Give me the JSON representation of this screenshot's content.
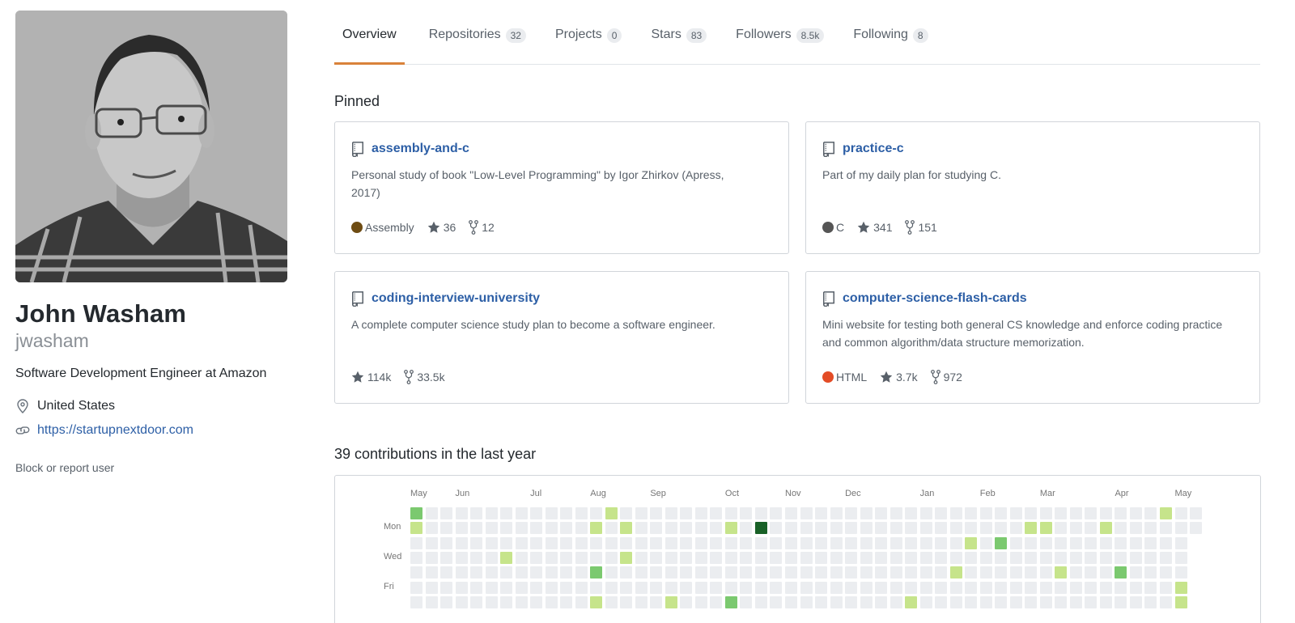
{
  "profile": {
    "fullname": "John Washam",
    "username": "jwasham",
    "bio": "Software Development Engineer at Amazon",
    "location": "United States",
    "website": "https://startupnextdoor.com",
    "block_label": "Block or report user"
  },
  "tabs": [
    {
      "label": "Overview",
      "count": null,
      "selected": true
    },
    {
      "label": "Repositories",
      "count": "32",
      "selected": false
    },
    {
      "label": "Projects",
      "count": "0",
      "selected": false
    },
    {
      "label": "Stars",
      "count": "83",
      "selected": false
    },
    {
      "label": "Followers",
      "count": "8.5k",
      "selected": false
    },
    {
      "label": "Following",
      "count": "8",
      "selected": false
    }
  ],
  "pinned": {
    "title": "Pinned",
    "repos": [
      {
        "name": "assembly-and-c",
        "description": "Personal study of book \"Low-Level Programming\" by Igor Zhirkov (Apress, 2017)",
        "language": "Assembly",
        "language_color": "#6E4C13",
        "stars": "36",
        "forks": "12"
      },
      {
        "name": "practice-c",
        "description": "Part of my daily plan for studying C.",
        "language": "C",
        "language_color": "#555555",
        "stars": "341",
        "forks": "151"
      },
      {
        "name": "coding-interview-university",
        "description": "A complete computer science study plan to become a software engineer.",
        "language": null,
        "language_color": null,
        "stars": "114k",
        "forks": "33.5k"
      },
      {
        "name": "computer-science-flash-cards",
        "description": "Mini website for testing both general CS knowledge and enforce coding practice and common algorithm/data structure memorization.",
        "language": "HTML",
        "language_color": "#E34C26",
        "stars": "3.7k",
        "forks": "972"
      }
    ]
  },
  "contributions": {
    "title": "39 contributions in the last year",
    "months": [
      {
        "label": "May",
        "col": 0
      },
      {
        "label": "Jun",
        "col": 3
      },
      {
        "label": "Jul",
        "col": 8
      },
      {
        "label": "Aug",
        "col": 12
      },
      {
        "label": "Sep",
        "col": 16
      },
      {
        "label": "Oct",
        "col": 21
      },
      {
        "label": "Nov",
        "col": 25
      },
      {
        "label": "Dec",
        "col": 29
      },
      {
        "label": "Jan",
        "col": 34
      },
      {
        "label": "Feb",
        "col": 38
      },
      {
        "label": "Mar",
        "col": 42
      },
      {
        "label": "Apr",
        "col": 47
      },
      {
        "label": "May",
        "col": 51
      }
    ],
    "day_labels": [
      {
        "label": "Mon",
        "row": 1
      },
      {
        "label": "Wed",
        "row": 3
      },
      {
        "label": "Fri",
        "row": 5
      }
    ],
    "total_columns": 53,
    "last_column_rows": 2,
    "colors": {
      "0": "#ebedf0",
      "1": "#c6e48b",
      "2": "#7bc96f",
      "3": "#239a3b",
      "4": "#196127"
    },
    "cells": [
      {
        "col": 0,
        "row": 0,
        "level": 2
      },
      {
        "col": 0,
        "row": 1,
        "level": 1
      },
      {
        "col": 6,
        "row": 3,
        "level": 1
      },
      {
        "col": 12,
        "row": 1,
        "level": 1
      },
      {
        "col": 12,
        "row": 4,
        "level": 2
      },
      {
        "col": 12,
        "row": 6,
        "level": 1
      },
      {
        "col": 13,
        "row": 0,
        "level": 1
      },
      {
        "col": 14,
        "row": 1,
        "level": 1
      },
      {
        "col": 14,
        "row": 3,
        "level": 1
      },
      {
        "col": 17,
        "row": 6,
        "level": 1
      },
      {
        "col": 21,
        "row": 1,
        "level": 1
      },
      {
        "col": 21,
        "row": 6,
        "level": 2
      },
      {
        "col": 23,
        "row": 1,
        "level": 4
      },
      {
        "col": 33,
        "row": 6,
        "level": 1
      },
      {
        "col": 36,
        "row": 4,
        "level": 1
      },
      {
        "col": 37,
        "row": 2,
        "level": 1
      },
      {
        "col": 39,
        "row": 2,
        "level": 2
      },
      {
        "col": 41,
        "row": 1,
        "level": 1
      },
      {
        "col": 42,
        "row": 1,
        "level": 1
      },
      {
        "col": 43,
        "row": 4,
        "level": 1
      },
      {
        "col": 46,
        "row": 1,
        "level": 1
      },
      {
        "col": 47,
        "row": 4,
        "level": 2
      },
      {
        "col": 50,
        "row": 0,
        "level": 1
      },
      {
        "col": 51,
        "row": 5,
        "level": 1
      },
      {
        "col": 51,
        "row": 6,
        "level": 1
      }
    ]
  },
  "icons": {
    "location": "location-pin-icon",
    "link": "link-icon",
    "repo": "repo-book-icon",
    "star": "star-icon",
    "fork": "fork-icon"
  },
  "colors": {
    "tab_underline": "#d9823a",
    "link": "#2d5fa6"
  }
}
